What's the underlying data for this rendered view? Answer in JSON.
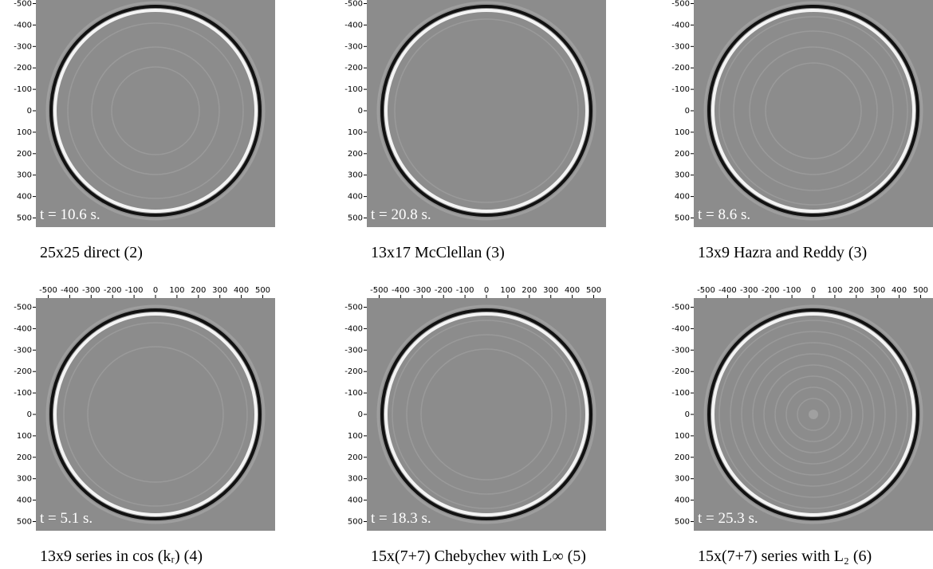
{
  "panels": [
    {
      "caption": "25x25 direct (2)",
      "time": "t = 10.6 s.",
      "yticks": [
        -500,
        -400,
        -300,
        -200,
        -100,
        0,
        100,
        200,
        300,
        400,
        500
      ]
    },
    {
      "caption": "13x17 McClellan (3)",
      "time": "t = 20.8 s.",
      "yticks": [
        -500,
        -400,
        -300,
        -200,
        -100,
        0,
        100,
        200,
        300,
        400,
        500
      ]
    },
    {
      "caption": "13x9 Hazra and Reddy (3)",
      "time": "t = 8.6 s.",
      "yticks": [
        -500,
        -400,
        -300,
        -200,
        -100,
        0,
        100,
        200,
        300,
        400,
        500
      ]
    },
    {
      "caption": "13x9 series in cos (kᵣ) (4)",
      "time": "t = 5.1 s.",
      "xticks": [
        -500,
        -400,
        -300,
        -200,
        -100,
        0,
        100,
        200,
        300,
        400,
        500
      ],
      "yticks": [
        -500,
        -400,
        -300,
        -200,
        -100,
        0,
        100,
        200,
        300,
        400,
        500
      ]
    },
    {
      "caption": "15x(7+7) Chebychev with L∞ (5)",
      "time": "t = 18.3 s.",
      "xticks": [
        -500,
        -400,
        -300,
        -200,
        -100,
        0,
        100,
        200,
        300,
        400,
        500
      ],
      "yticks": [
        -500,
        -400,
        -300,
        -200,
        -100,
        0,
        100,
        200,
        300,
        400,
        500
      ]
    },
    {
      "caption": "15x(7+7) series with L₂ (6)",
      "time": "t = 25.3 s.",
      "xticks": [
        -500,
        -400,
        -300,
        -200,
        -100,
        0,
        100,
        200,
        300,
        400,
        500
      ],
      "yticks": [
        -500,
        -400,
        -300,
        -200,
        -100,
        0,
        100,
        200,
        300,
        400,
        500
      ]
    }
  ]
}
